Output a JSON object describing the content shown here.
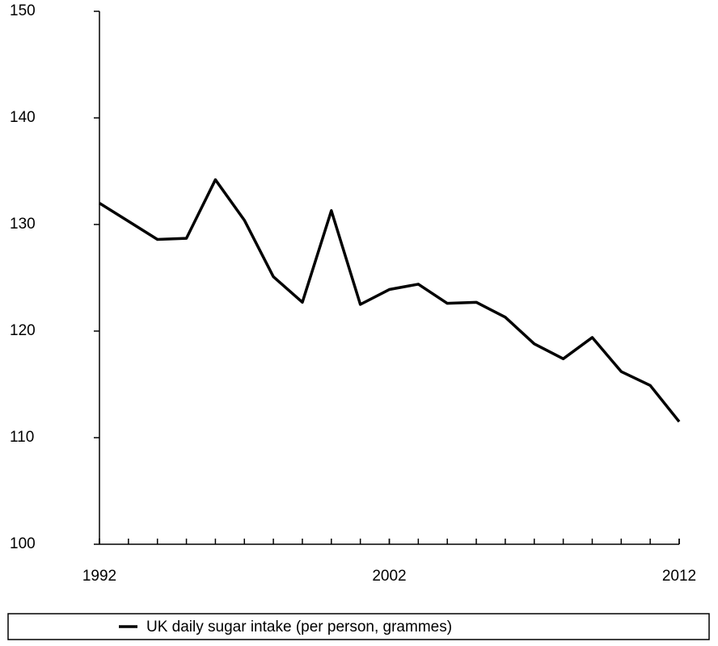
{
  "chart_data": {
    "type": "line",
    "x": [
      1992,
      1993,
      1994,
      1995,
      1996,
      1997,
      1998,
      1999,
      2000,
      2001,
      2002,
      2003,
      2004,
      2005,
      2006,
      2007,
      2008,
      2009,
      2010,
      2011,
      2012
    ],
    "series": [
      {
        "name": "UK daily sugar intake (per person, grammes)",
        "color": "#000000",
        "values": [
          132.0,
          130.3,
          128.6,
          128.7,
          134.2,
          130.4,
          125.1,
          122.7,
          131.3,
          122.5,
          123.9,
          124.4,
          122.6,
          122.7,
          121.3,
          118.8,
          117.4,
          119.4,
          116.2,
          114.9,
          111.5
        ]
      }
    ],
    "xlim": [
      1992,
      2012
    ],
    "xticks": [
      1992,
      2002,
      2012
    ],
    "ylim": [
      100,
      150
    ],
    "yticks": [
      100,
      110,
      120,
      130,
      140,
      150
    ],
    "grid": false,
    "legend": "bottom"
  }
}
